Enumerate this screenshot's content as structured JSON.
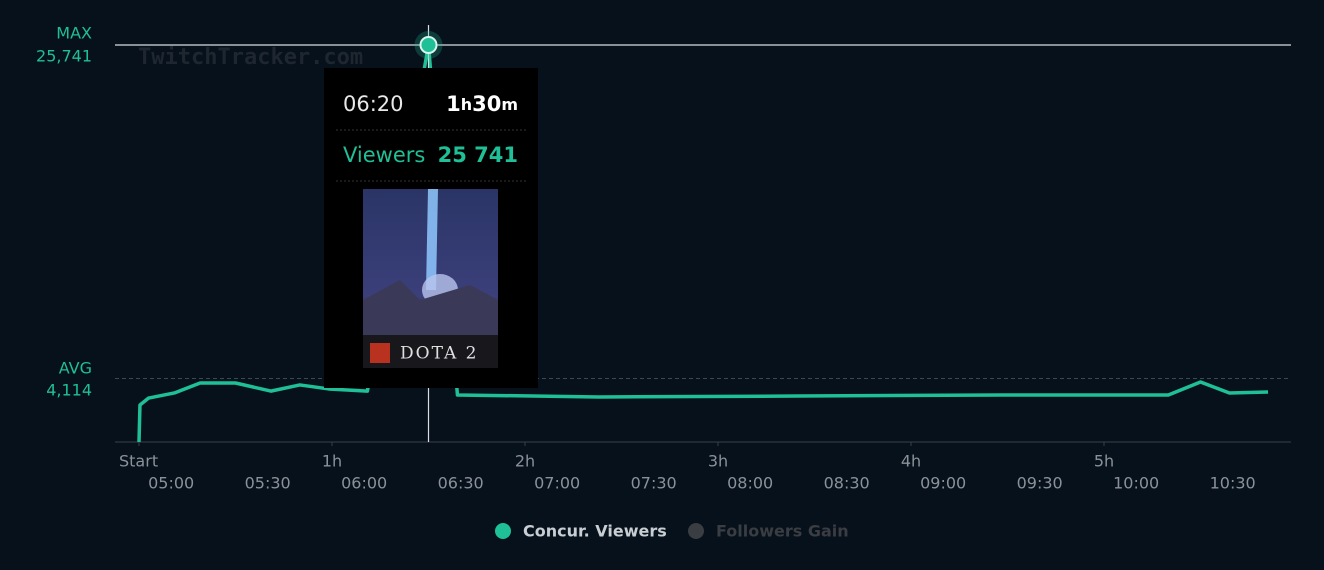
{
  "chart_data": {
    "type": "line",
    "watermark": "TwitchTracker.com",
    "x": [
      0,
      0.3,
      3,
      11,
      19,
      30,
      41,
      50,
      59,
      71,
      90,
      99,
      143,
      205,
      268,
      320,
      330,
      339,
      351
    ],
    "series": [
      {
        "name": "Concur. Viewers",
        "color": "#1fbf98",
        "values": [
          0,
          2400,
          2850,
          3180,
          3825,
          3825,
          3300,
          3700,
          3440,
          3300,
          25741,
          3050,
          2920,
          2980,
          3050,
          3050,
          3890,
          3180,
          3240
        ]
      }
    ],
    "legend_inactive": {
      "name": "Followers Gain",
      "color": "#3a3d42"
    },
    "xlim": [
      0,
      358
    ],
    "ylim": [
      0,
      25741
    ],
    "xticks": [
      {
        "value": 0,
        "label": "Start"
      },
      {
        "value": 60,
        "label": "1h"
      },
      {
        "value": 120,
        "label": "2h"
      },
      {
        "value": 180,
        "label": "3h"
      },
      {
        "value": 240,
        "label": "4h"
      },
      {
        "value": 300,
        "label": "5h"
      }
    ],
    "xticks_clock": [
      {
        "value": 10,
        "label": "05:00"
      },
      {
        "value": 40,
        "label": "05:30"
      },
      {
        "value": 70,
        "label": "06:00"
      },
      {
        "value": 100,
        "label": "06:30"
      },
      {
        "value": 130,
        "label": "07:00"
      },
      {
        "value": 160,
        "label": "07:30"
      },
      {
        "value": 190,
        "label": "08:00"
      },
      {
        "value": 220,
        "label": "08:30"
      },
      {
        "value": 250,
        "label": "09:00"
      },
      {
        "value": 280,
        "label": "09:30"
      },
      {
        "value": 310,
        "label": "10:00"
      },
      {
        "value": 340,
        "label": "10:30"
      }
    ],
    "max_line": {
      "label": "MAX",
      "value": 25741,
      "value_label": "25,741"
    },
    "avg_line": {
      "label": "AVG",
      "value": 4114,
      "value_label": "4,114"
    },
    "tooltip": {
      "x": 90,
      "time": "06:20",
      "hours": "1",
      "h": "h",
      "minutes": "30",
      "m": "m",
      "label": "Viewers",
      "value": 25741,
      "value_label": "25 741",
      "game": "DOTA 2"
    }
  }
}
